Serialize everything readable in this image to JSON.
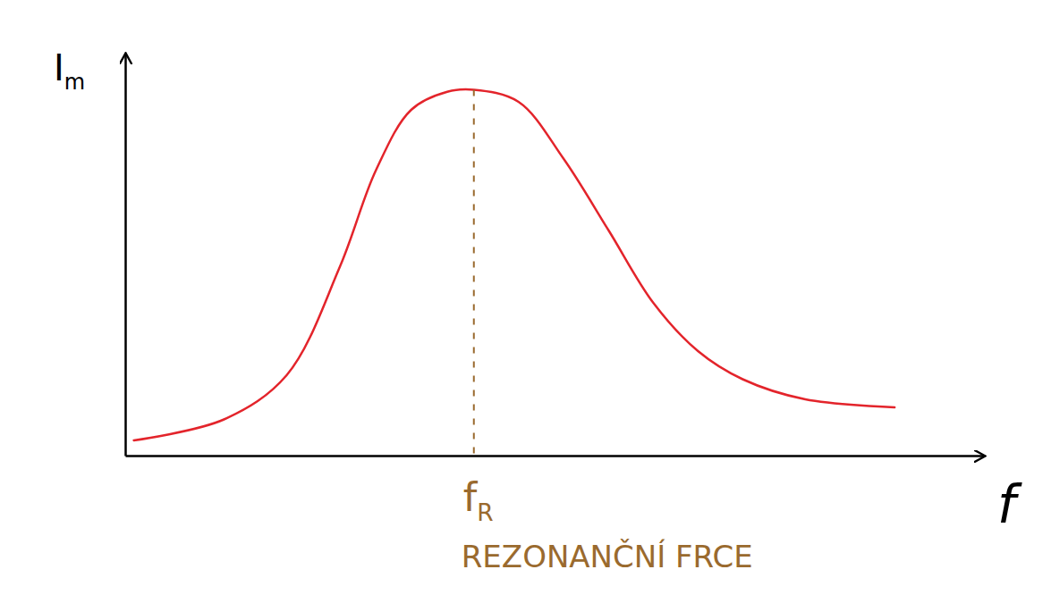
{
  "chart_data": {
    "type": "line",
    "x_label": "f",
    "y_label": "Im",
    "x": [
      0.1,
      1.15,
      1.88,
      2.5,
      2.92,
      3.33,
      3.75,
      4.06,
      4.58,
      5.1,
      5.63,
      6.15,
      6.67,
      7.19,
      7.92,
      8.96
    ],
    "values": [
      0.38,
      0.9,
      2.0,
      4.7,
      7.1,
      8.6,
      9.05,
      9.1,
      8.8,
      7.4,
      5.6,
      3.8,
      2.6,
      1.9,
      1.4,
      1.2
    ],
    "color": "#e3242b",
    "xlim": [
      0,
      10
    ],
    "ylim": [
      0,
      10
    ],
    "xticks": [],
    "yticks": [],
    "tick_labels": false,
    "grid": false,
    "annotations": [
      {
        "text": "fR",
        "x": 4.06,
        "y": 9.1,
        "color": "#9a6a2e"
      },
      {
        "text": "REZONANČNÍ FRCE",
        "x": 4.06,
        "color": "#9a6a2e"
      }
    ]
  }
}
